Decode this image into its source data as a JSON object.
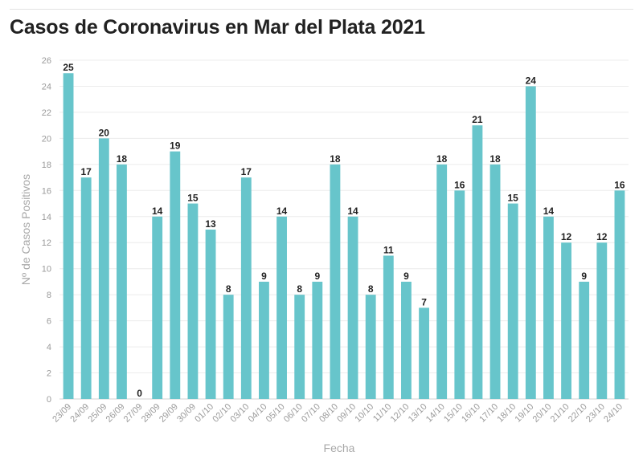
{
  "chart_data": {
    "type": "bar",
    "title": "Casos de Coronavirus en Mar del Plata 2021",
    "xlabel": "Fecha",
    "ylabel": "Nº de Casos Positivos",
    "ylim": [
      0,
      26
    ],
    "yticks": [
      0,
      2,
      4,
      6,
      8,
      10,
      12,
      14,
      16,
      18,
      20,
      22,
      24,
      26
    ],
    "grid": true,
    "bar_color": "#67c5cb",
    "categories": [
      "23/09",
      "24/09",
      "25/09",
      "26/09",
      "27/09",
      "28/09",
      "29/09",
      "30/09",
      "01/10",
      "02/10",
      "03/10",
      "04/10",
      "05/10",
      "06/10",
      "07/10",
      "08/10",
      "09/10",
      "10/10",
      "11/10",
      "12/10",
      "13/10",
      "14/10",
      "15/10",
      "16/10",
      "17/10",
      "18/10",
      "19/10",
      "20/10",
      "21/10",
      "22/10",
      "23/10",
      "24/10"
    ],
    "values": [
      25,
      17,
      20,
      18,
      0,
      14,
      19,
      15,
      13,
      8,
      17,
      9,
      14,
      8,
      9,
      18,
      14,
      8,
      11,
      9,
      7,
      18,
      16,
      21,
      18,
      15,
      24,
      14,
      12,
      9,
      12,
      16
    ]
  }
}
